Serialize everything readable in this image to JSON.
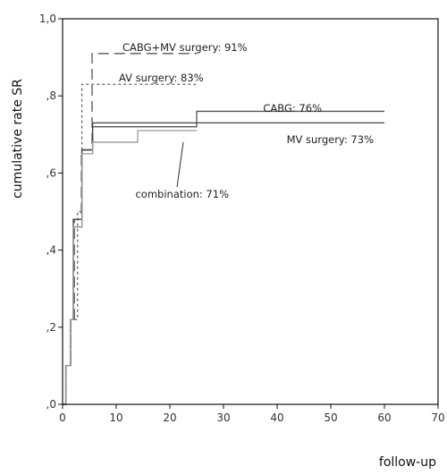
{
  "chart_data": {
    "type": "line",
    "xlabel": "follow-up",
    "ylabel": "cumulative rate SR",
    "xlim": [
      0,
      70
    ],
    "ylim": [
      0,
      1.0
    ],
    "x_ticks": [
      "0",
      "10",
      "20",
      "30",
      "40",
      "50",
      "60",
      "70"
    ],
    "y_ticks": [
      ",0",
      ",2",
      ",4",
      ",6",
      ",8",
      "1,0"
    ],
    "grid": false,
    "legend": "none",
    "series": [
      {
        "label": "CABG+MV surgery: 91%",
        "style": "dashed",
        "color": "#555555",
        "x": [
          0,
          0.6,
          1.5,
          2.2,
          3.5,
          5.5,
          25
        ],
        "y": [
          0,
          0.1,
          0.22,
          0.48,
          0.66,
          0.91,
          0.91
        ]
      },
      {
        "label": "AV surgery: 83%",
        "style": "dotted",
        "color": "#666666",
        "x": [
          0,
          0.6,
          1.5,
          2.8,
          3.6,
          25
        ],
        "y": [
          0,
          0.1,
          0.22,
          0.5,
          0.83,
          0.83
        ]
      },
      {
        "label": "CABG: 76%",
        "style": "solid",
        "color": "#555555",
        "x": [
          0,
          0.6,
          1.5,
          2.0,
          3.6,
          5.6,
          25,
          60
        ],
        "y": [
          0,
          0.1,
          0.22,
          0.46,
          0.66,
          0.72,
          0.76,
          0.76
        ]
      },
      {
        "label": "MV surgery: 73%",
        "style": "solid",
        "color": "#444444",
        "x": [
          0,
          0.6,
          1.5,
          2.0,
          3.6,
          5.6,
          60
        ],
        "y": [
          0,
          0.1,
          0.22,
          0.48,
          0.66,
          0.73,
          0.73
        ]
      },
      {
        "label": "combination: 71%",
        "style": "solid-light",
        "color": "#9a9a9a",
        "x": [
          0,
          0.6,
          1.5,
          2.0,
          3.6,
          5.6,
          14,
          25
        ],
        "y": [
          0,
          0.1,
          0.22,
          0.46,
          0.65,
          0.68,
          0.71,
          0.71
        ]
      }
    ],
    "annotations": [
      {
        "text": "CABG+MV surgery: 91%",
        "series": 0
      },
      {
        "text": "AV surgery: 83%",
        "series": 1
      },
      {
        "text": "CABG: 76%",
        "series": 2
      },
      {
        "text": "MV surgery: 73%",
        "series": 3
      },
      {
        "text": "combination: 71%",
        "series": 4
      }
    ]
  }
}
